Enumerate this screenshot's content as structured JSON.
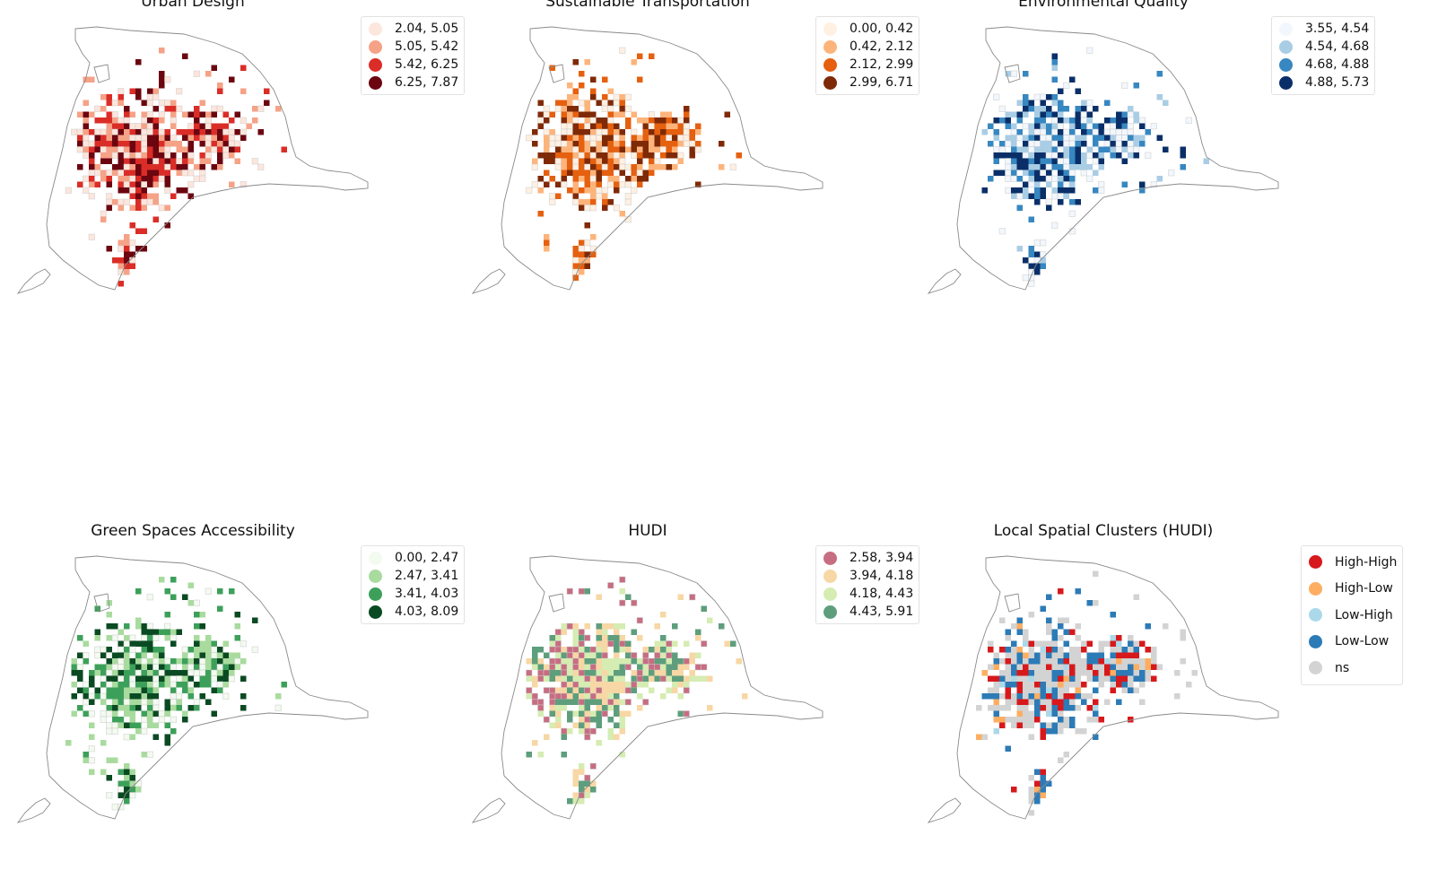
{
  "panels": [
    {
      "id": "urban-design",
      "title": "Urban Design",
      "legend": [
        {
          "label": "2.04, 5.05",
          "color": "#fde6dc"
        },
        {
          "label": "5.05, 5.42",
          "color": "#f6a287"
        },
        {
          "label": "5.42, 6.25",
          "color": "#db2d27"
        },
        {
          "label": "6.25, 7.87",
          "color": "#6b0510"
        }
      ]
    },
    {
      "id": "sustainable-transportation",
      "title": "Sustainable Transportation",
      "legend": [
        {
          "label": "0.00, 0.42",
          "color": "#fff0e2"
        },
        {
          "label": "0.42, 2.12",
          "color": "#fdb47b"
        },
        {
          "label": "2.12, 2.99",
          "color": "#e5600f"
        },
        {
          "label": "2.99, 6.71",
          "color": "#7f2a07"
        }
      ]
    },
    {
      "id": "environmental-quality",
      "title": "Environmental Quality",
      "legend": [
        {
          "label": "3.55, 4.54",
          "color": "#f2f7fd"
        },
        {
          "label": "4.54, 4.68",
          "color": "#a9cde4"
        },
        {
          "label": "4.68, 4.88",
          "color": "#3787c1"
        },
        {
          "label": "4.88, 5.73",
          "color": "#0a2f68"
        }
      ]
    },
    {
      "id": "green-spaces-accessibility",
      "title": "Green Spaces Accessibility",
      "legend": [
        {
          "label": "0.00, 2.47",
          "color": "#f3faf0"
        },
        {
          "label": "2.47, 3.41",
          "color": "#a9db9f"
        },
        {
          "label": "3.41, 4.03",
          "color": "#3da05a"
        },
        {
          "label": "4.03, 8.09",
          "color": "#0a4a22"
        }
      ]
    },
    {
      "id": "hudi",
      "title": "HUDI",
      "legend": [
        {
          "label": "2.58, 3.94",
          "color": "#c76d82"
        },
        {
          "label": "3.94, 4.18",
          "color": "#f7d7a5"
        },
        {
          "label": "4.18, 4.43",
          "color": "#d5ecb2"
        },
        {
          "label": "4.43, 5.91",
          "color": "#5e9e7d"
        }
      ]
    },
    {
      "id": "local-spatial-clusters",
      "title": "Local Spatial Clusters (HUDI)",
      "legend": [
        {
          "label": "High-High",
          "color": "#d7191c"
        },
        {
          "label": "High-Low",
          "color": "#fdae61"
        },
        {
          "label": "Low-High",
          "color": "#abd9e9"
        },
        {
          "label": "Low-Low",
          "color": "#2c7bb6"
        },
        {
          "label": "ns",
          "color": "#d3d3d3"
        }
      ]
    }
  ]
}
